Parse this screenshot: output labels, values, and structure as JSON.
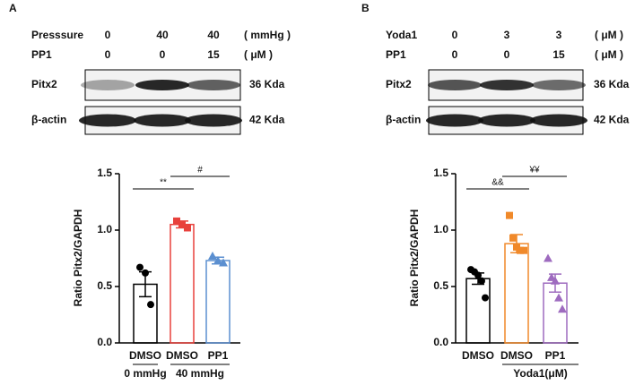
{
  "panels": [
    {
      "letter": "A",
      "rows": [
        {
          "label": "Presssure",
          "values": [
            "0",
            "40",
            "40"
          ],
          "unit": "( mmHg )"
        },
        {
          "label": "PP1",
          "values": [
            "0",
            "0",
            "15"
          ],
          "unit": "( μM )"
        }
      ],
      "blots": [
        {
          "label": "Pitx2",
          "size": "36 Kda"
        },
        {
          "label": "β-actin",
          "size": "42 Kda"
        }
      ]
    },
    {
      "letter": "B",
      "rows": [
        {
          "label": "Yoda1",
          "values": [
            "0",
            "3",
            "3"
          ],
          "unit": "( μM )"
        },
        {
          "label": "PP1",
          "values": [
            "0",
            "0",
            "15"
          ],
          "unit": "( μM )"
        }
      ],
      "blots": [
        {
          "label": "Pitx2",
          "size": "36 Kda"
        },
        {
          "label": "β-actin",
          "size": "42 Kda"
        }
      ]
    }
  ],
  "chart_data": [
    {
      "type": "bar",
      "y_label": "Ratio Pitx2/GAPDH",
      "categories": [
        "DMSO",
        "DMSO",
        "PP1"
      ],
      "values": [
        0.52,
        1.05,
        0.73
      ],
      "errors": [
        0.11,
        0.03,
        0.03
      ],
      "points": [
        [
          0.67,
          0.62,
          0.34
        ],
        [
          1.08,
          1.05,
          1.02
        ],
        [
          0.77,
          0.73,
          0.71
        ]
      ],
      "colors": [
        "#000000",
        "#e8413c",
        "#5b8fd0"
      ],
      "markers": [
        "circle",
        "square",
        "triangle"
      ],
      "groups": [
        "0 mmHg",
        "40 mmHg"
      ],
      "significance": [
        "**",
        "#"
      ],
      "ylim": [
        0,
        1.5
      ],
      "yticks": [
        {
          "value": 0,
          "label": "0.0"
        },
        0.5,
        {
          "value": 1,
          "label": "1.0"
        },
        1.5
      ]
    },
    {
      "type": "bar",
      "y_label": "Ratio Pitx2/GAPDH",
      "categories": [
        "DMSO",
        "DMSO",
        "PP1"
      ],
      "values": [
        0.57,
        0.88,
        0.53
      ],
      "errors": [
        0.05,
        0.08,
        0.08
      ],
      "points": [
        [
          0.65,
          0.63,
          0.6,
          0.55,
          0.4
        ],
        [
          1.13,
          0.93,
          0.85,
          0.82,
          0.82
        ],
        [
          0.75,
          0.58,
          0.55,
          0.4,
          0.3
        ]
      ],
      "colors": [
        "#000000",
        "#f0892a",
        "#9e6bbf"
      ],
      "markers": [
        "circle",
        "square",
        "triangle"
      ],
      "groups": [
        "Yoda1(μM)"
      ],
      "significance": [
        "&&",
        "¥¥"
      ],
      "ylim": [
        0,
        1.5
      ],
      "yticks": [
        {
          "value": 0,
          "label": "0.0"
        },
        0.5,
        {
          "value": 1,
          "label": "1.0"
        },
        1.5
      ]
    }
  ]
}
